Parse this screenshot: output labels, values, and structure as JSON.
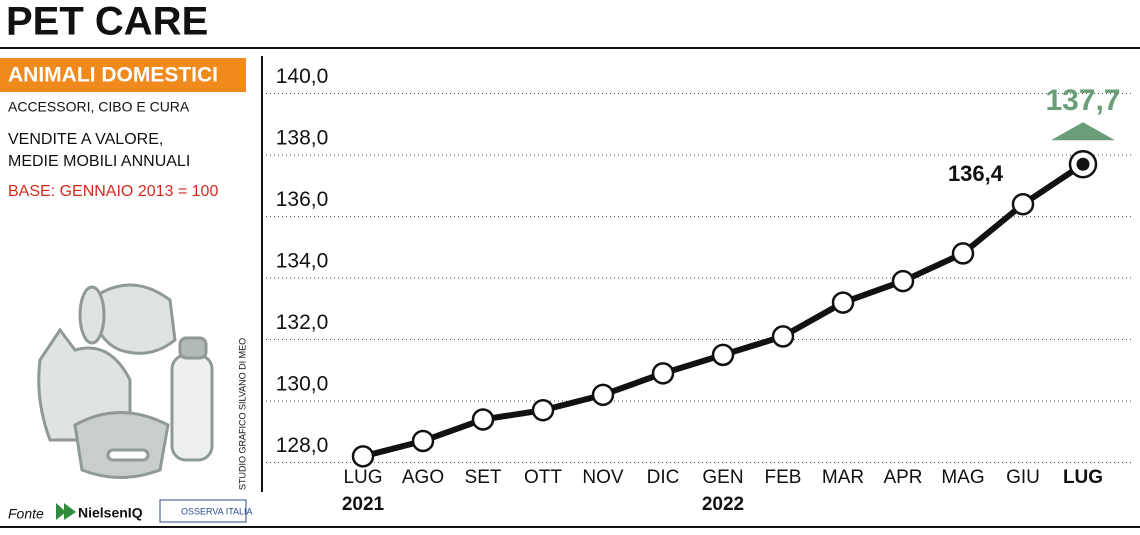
{
  "chart_data": {
    "type": "line",
    "title": "PET CARE",
    "subtitle": "ANIMALI DOMESTICI",
    "notes": [
      "ACCESSORI, CIBO E CURA",
      "VENDITE A VALORE,",
      "MEDIE MOBILI ANNUALI"
    ],
    "base_note": "BASE: GENNAIO 2013 = 100",
    "credit": "STUDIO GRAFICO SILVANO DI MEO",
    "source_label": "Fonte",
    "sources": [
      "NielsenIQ",
      "OSSERVA ITALIA"
    ],
    "categories": [
      "LUG",
      "AGO",
      "SET",
      "OTT",
      "NOV",
      "DIC",
      "GEN",
      "FEB",
      "MAR",
      "APR",
      "MAG",
      "GIU",
      "LUG"
    ],
    "year_labels": [
      "2021",
      null,
      null,
      null,
      null,
      null,
      "2022",
      null,
      null,
      null,
      null,
      null,
      null
    ],
    "series": [
      {
        "color": "#111111",
        "values": [
          128.2,
          128.7,
          129.4,
          129.7,
          130.2,
          130.9,
          131.5,
          132.1,
          133.2,
          133.9,
          134.8,
          136.4,
          137.7
        ],
        "value_labels": [
          null,
          null,
          null,
          null,
          null,
          null,
          null,
          null,
          null,
          null,
          null,
          "136,4",
          "137,7"
        ]
      }
    ],
    "ylim": [
      128,
      140
    ],
    "yticks": [
      {
        "value": 128,
        "label": "128,0"
      },
      {
        "value": 130,
        "label": "130,0"
      },
      {
        "value": 132,
        "label": "132,0"
      },
      {
        "value": 134,
        "label": "134,0"
      },
      {
        "value": 136,
        "label": "136,0"
      },
      {
        "value": 138,
        "label": "138,0"
      },
      {
        "value": 140,
        "label": "140,0"
      }
    ],
    "grid": true
  }
}
